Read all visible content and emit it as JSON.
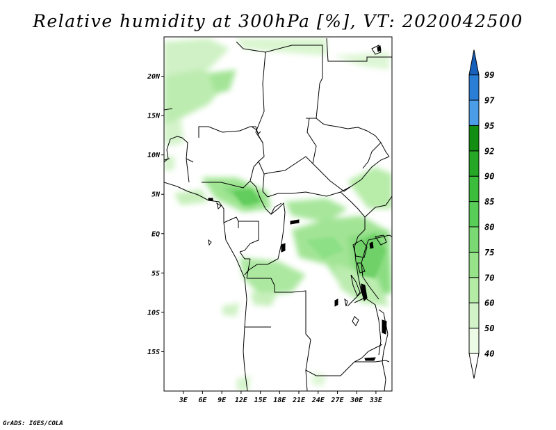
{
  "title": "Relative humidity at 300hPa [%], VT: 2020042500",
  "credit": "GrADS: IGES/COLA",
  "map": {
    "lon_range": [
      0,
      35.5
    ],
    "lat_range": [
      -20,
      25
    ],
    "lat_ticks": [
      {
        "value": 20,
        "label": "20N"
      },
      {
        "value": 15,
        "label": "15N"
      },
      {
        "value": 10,
        "label": "10N"
      },
      {
        "value": 5,
        "label": "5N"
      },
      {
        "value": 0,
        "label": "EQ"
      },
      {
        "value": -5,
        "label": "5S"
      },
      {
        "value": -10,
        "label": "10S"
      },
      {
        "value": -15,
        "label": "15S"
      }
    ],
    "lon_ticks": [
      {
        "value": 3,
        "label": "3E"
      },
      {
        "value": 6,
        "label": "6E"
      },
      {
        "value": 9,
        "label": "9E"
      },
      {
        "value": 12,
        "label": "12E"
      },
      {
        "value": 15,
        "label": "15E"
      },
      {
        "value": 18,
        "label": "18E"
      },
      {
        "value": 21,
        "label": "21E"
      },
      {
        "value": 24,
        "label": "24E"
      },
      {
        "value": 27,
        "label": "27E"
      },
      {
        "value": 30,
        "label": "30E"
      },
      {
        "value": 33,
        "label": "33E"
      }
    ]
  },
  "colorbar": {
    "levels": [
      "40",
      "50",
      "60",
      "70",
      "75",
      "80",
      "85",
      "90",
      "92",
      "95",
      "97",
      "99"
    ],
    "colors": [
      "#ebfbe6",
      "#d2f3c8",
      "#b4eba5",
      "#96e38a",
      "#7ad972",
      "#58cd58",
      "#3cbd3c",
      "#26a826",
      "#128f12",
      "#4a9de6",
      "#2a7ed6",
      "#1760bb"
    ]
  }
}
